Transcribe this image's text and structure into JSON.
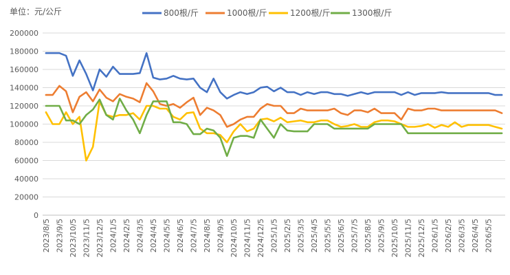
{
  "chart_data": {
    "type": "line",
    "unit_label": "单位：元/公斤",
    "ylim": [
      0,
      200000
    ],
    "y_ticks": [
      0,
      20000,
      40000,
      60000,
      80000,
      100000,
      120000,
      140000,
      160000,
      180000,
      200000
    ],
    "grid": "horizontal",
    "legend_position": "top-right",
    "x_tick_labels": [
      "2023/8/5",
      "2023/9/5",
      "2023/10/5",
      "2023/11/5",
      "2023/12/5",
      "2024/1/5",
      "2024/2/5",
      "2024/3/5",
      "2024/4/5",
      "2024/5/5",
      "2024/6/5",
      "2024/7/5",
      "2024/8/5",
      "2024/9/5",
      "2024/10/5",
      "2024/11/5",
      "2024/12/5",
      "2025/1/5",
      "2025/2/5",
      "2025/3/5",
      "2025/4/5",
      "2025/5/5",
      "2025/6/5",
      "2025/7/5",
      "2025/8/5",
      "2025/9/5",
      "2025/10/5",
      "2025/11/5",
      "2025/12/5",
      "2026/1/5",
      "2026/2/5",
      "2026/3/5",
      "2026/4/5",
      "2026/5/5"
    ],
    "x_per_tick": 2,
    "series": [
      {
        "name": "800根/斤",
        "color": "#4472C4",
        "values": [
          178000,
          178000,
          178000,
          175000,
          153000,
          170000,
          155000,
          137000,
          160000,
          152000,
          163000,
          155000,
          155000,
          155000,
          156000,
          178000,
          151000,
          149000,
          150000,
          153000,
          150000,
          149000,
          150000,
          140000,
          135000,
          150000,
          135000,
          128000,
          132000,
          135000,
          133000,
          135000,
          140000,
          141000,
          136000,
          140000,
          135000,
          135000,
          132000,
          135000,
          133000,
          135000,
          135000,
          133000,
          133000,
          131000,
          133000,
          135000,
          133000,
          135000,
          135000,
          135000,
          135000,
          132000,
          135000,
          132000,
          134000,
          134000,
          134000,
          135000,
          134000,
          134000,
          134000,
          134000,
          134000,
          134000,
          134000,
          132000,
          132000
        ]
      },
      {
        "name": "1000根/斤",
        "color": "#ED7D31",
        "values": [
          132000,
          132000,
          142000,
          136000,
          113000,
          130000,
          135000,
          125000,
          138000,
          129000,
          125000,
          133000,
          130000,
          128000,
          124000,
          145000,
          136000,
          122000,
          120000,
          122000,
          118000,
          124000,
          129000,
          110000,
          118000,
          115000,
          110000,
          97000,
          100000,
          105000,
          108000,
          108000,
          117000,
          122000,
          120000,
          120000,
          112000,
          112000,
          117000,
          115000,
          115000,
          115000,
          115000,
          117000,
          112000,
          110000,
          115000,
          115000,
          113000,
          117000,
          112000,
          112000,
          112000,
          105000,
          117000,
          115000,
          115000,
          117000,
          117000,
          115000,
          115000,
          115000,
          115000,
          115000,
          115000,
          115000,
          115000,
          115000,
          112000
        ]
      },
      {
        "name": "1200根/斤",
        "color": "#FFC000",
        "values": [
          113000,
          100000,
          100000,
          113000,
          100000,
          108000,
          60000,
          75000,
          125000,
          110000,
          108000,
          110000,
          110000,
          112000,
          105000,
          120000,
          120000,
          117000,
          117000,
          108000,
          105000,
          112000,
          113000,
          95000,
          90000,
          90000,
          88000,
          80000,
          92000,
          100000,
          92000,
          95000,
          105000,
          106000,
          103000,
          107000,
          102000,
          103000,
          104000,
          102000,
          102000,
          104000,
          104000,
          100000,
          97000,
          98000,
          100000,
          97000,
          97000,
          102000,
          104000,
          104000,
          103000,
          100000,
          97000,
          97000,
          98000,
          100000,
          96000,
          99000,
          97000,
          102000,
          97000,
          99000,
          99000,
          99000,
          99000,
          97000,
          95000
        ]
      },
      {
        "name": "1300根/斤",
        "color": "#70AD47",
        "values": [
          120000,
          120000,
          120000,
          104000,
          104000,
          100000,
          110000,
          116000,
          127000,
          110000,
          105000,
          128000,
          115000,
          105000,
          90000,
          110000,
          125000,
          125000,
          125000,
          102000,
          102000,
          100000,
          89000,
          89000,
          95000,
          93000,
          85000,
          65000,
          85000,
          87000,
          87000,
          85000,
          105000,
          95000,
          85000,
          100000,
          93000,
          92000,
          92000,
          92000,
          100000,
          100000,
          100000,
          95000,
          95000,
          95000,
          95000,
          95000,
          95000,
          100000,
          100000,
          100000,
          100000,
          100000,
          90000,
          90000,
          90000,
          90000,
          90000,
          90000,
          90000,
          90000,
          90000,
          90000,
          90000,
          90000,
          90000,
          90000,
          90000
        ]
      }
    ]
  }
}
